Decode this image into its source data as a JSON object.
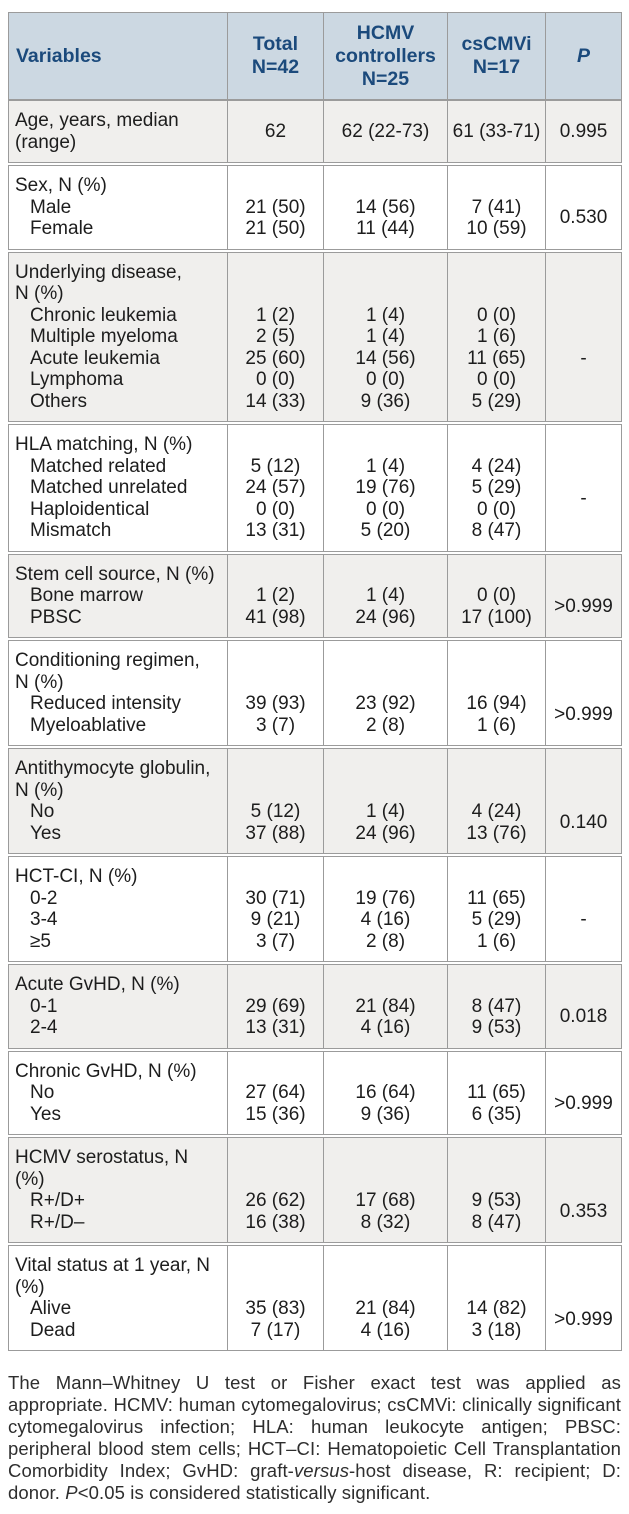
{
  "colors": {
    "header_bg": "#ccd8e2",
    "header_text": "#1b4a7c",
    "shaded_row_bg": "#f0efed",
    "border": "#9b9b9b",
    "body_text": "#1d1d1d",
    "footnote_text": "#2e2e2e",
    "page_bg": "#ffffff"
  },
  "table": {
    "header": [
      {
        "id": "variables",
        "lines": [
          "Variables"
        ],
        "italic": false
      },
      {
        "id": "total",
        "lines": [
          "Total",
          "N=42"
        ],
        "italic": false
      },
      {
        "id": "hcmv-controllers",
        "lines": [
          "HCMV",
          "controllers",
          "N=25"
        ],
        "italic": false
      },
      {
        "id": "cscmvi",
        "lines": [
          "csCMVi",
          "N=17"
        ],
        "italic": false
      },
      {
        "id": "p",
        "lines": [
          "P"
        ],
        "italic": true
      }
    ],
    "rows": [
      {
        "label_lines": [
          "Age, years, median",
          "(range)"
        ],
        "items": [],
        "total": [
          "62"
        ],
        "hcmv": [
          "62 (22-73)"
        ],
        "cscmvi": [
          "61 (33-71)"
        ],
        "p": "0.995",
        "shaded": true
      },
      {
        "label_lines": [
          "Sex, N (%)"
        ],
        "items": [
          "Male",
          "Female"
        ],
        "total": [
          "21 (50)",
          "21 (50)"
        ],
        "hcmv": [
          "14 (56)",
          "11 (44)"
        ],
        "cscmvi": [
          "7 (41)",
          "10 (59)"
        ],
        "p": "0.530",
        "shaded": false
      },
      {
        "label_lines": [
          "Underlying disease,",
          "N (%)"
        ],
        "items": [
          "Chronic leukemia",
          "Multiple myeloma",
          "Acute leukemia",
          "Lymphoma",
          "Others"
        ],
        "total": [
          "1 (2)",
          "2 (5)",
          "25 (60)",
          "0 (0)",
          "14 (33)"
        ],
        "hcmv": [
          "1 (4)",
          "1 (4)",
          "14 (56)",
          "0 (0)",
          "9 (36)"
        ],
        "cscmvi": [
          "0 (0)",
          "1 (6)",
          "11 (65)",
          "0 (0)",
          "5 (29)"
        ],
        "p": "-",
        "shaded": true
      },
      {
        "label_lines": [
          "HLA matching, N (%)"
        ],
        "items": [
          "Matched related",
          "Matched unrelated",
          "Haploidentical",
          "Mismatch"
        ],
        "total": [
          "5 (12)",
          "24 (57)",
          "0 (0)",
          "13 (31)"
        ],
        "hcmv": [
          "1 (4)",
          "19 (76)",
          "0 (0)",
          "5 (20)"
        ],
        "cscmvi": [
          "4 (24)",
          "5 (29)",
          "0 (0)",
          "8 (47)"
        ],
        "p": "-",
        "shaded": false
      },
      {
        "label_lines": [
          "Stem cell source, N (%)"
        ],
        "items": [
          "Bone marrow",
          "PBSC"
        ],
        "total": [
          "1 (2)",
          "41 (98)"
        ],
        "hcmv": [
          "1 (4)",
          "24 (96)"
        ],
        "cscmvi": [
          "0 (0)",
          "17 (100)"
        ],
        "p": ">0.999",
        "shaded": true
      },
      {
        "label_lines": [
          "Conditioning regimen,",
          "N (%)"
        ],
        "items": [
          "Reduced intensity",
          "Myeloablative"
        ],
        "total": [
          "39 (93)",
          "3 (7)"
        ],
        "hcmv": [
          "23 (92)",
          "2 (8)"
        ],
        "cscmvi": [
          "16 (94)",
          "1 (6)"
        ],
        "p": ">0.999",
        "shaded": false
      },
      {
        "label_lines": [
          "Antithymocyte globulin,",
          "N (%)"
        ],
        "items": [
          "No",
          "Yes"
        ],
        "total": [
          "5 (12)",
          "37 (88)"
        ],
        "hcmv": [
          "1 (4)",
          "24 (96)"
        ],
        "cscmvi": [
          "4 (24)",
          "13 (76)"
        ],
        "p": "0.140",
        "shaded": true
      },
      {
        "label_lines": [
          "HCT-CI, N (%)"
        ],
        "items": [
          "0-2",
          "3-4",
          "≥5"
        ],
        "total": [
          "30 (71)",
          "9 (21)",
          "3 (7)"
        ],
        "hcmv": [
          "19 (76)",
          "4 (16)",
          "2 (8)"
        ],
        "cscmvi": [
          "11 (65)",
          "5 (29)",
          "1 (6)"
        ],
        "p": "-",
        "shaded": false
      },
      {
        "label_lines": [
          "Acute GvHD, N (%)"
        ],
        "items": [
          "0-1",
          "2-4"
        ],
        "total": [
          "29 (69)",
          "13 (31)"
        ],
        "hcmv": [
          "21 (84)",
          "4 (16)"
        ],
        "cscmvi": [
          "8 (47)",
          "9 (53)"
        ],
        "p": "0.018",
        "shaded": true
      },
      {
        "label_lines": [
          "Chronic GvHD, N (%)"
        ],
        "items": [
          "No",
          "Yes"
        ],
        "total": [
          "27 (64)",
          "15 (36)"
        ],
        "hcmv": [
          "16 (64)",
          "9 (36)"
        ],
        "cscmvi": [
          "11 (65)",
          "6 (35)"
        ],
        "p": ">0.999",
        "shaded": false
      },
      {
        "label_lines": [
          "HCMV serostatus, N",
          "(%)"
        ],
        "items": [
          "R+/D+",
          "R+/D–"
        ],
        "total": [
          "26 (62)",
          "16 (38)"
        ],
        "hcmv": [
          "17 (68)",
          "8 (32)"
        ],
        "cscmvi": [
          "9 (53)",
          "8 (47)"
        ],
        "p": "0.353",
        "shaded": true
      },
      {
        "label_lines": [
          "Vital status at 1 year, N",
          "(%)"
        ],
        "items": [
          "Alive",
          "Dead"
        ],
        "total": [
          "35 (83)",
          "7 (17)"
        ],
        "hcmv": [
          "21 (84)",
          "4 (16)"
        ],
        "cscmvi": [
          "14 (82)",
          "3 (18)"
        ],
        "p": ">0.999",
        "shaded": false
      }
    ]
  },
  "footnote": {
    "segments": [
      {
        "text": "The Mann–Whitney U test or Fisher exact test was applied as appropriate. HCMV: human cytomegalovirus; csCMVi: clinically significant cytomegalovirus infection; HLA: human leukocyte antigen; PBSC: peripheral blood stem cells; HCT–CI: Hematopoietic Cell Transplantation Comorbidity Index; GvHD: graft-",
        "italic": false
      },
      {
        "text": "versus",
        "italic": true
      },
      {
        "text": "-host disease, R: recipient; D: donor. ",
        "italic": false
      },
      {
        "text": "P",
        "italic": true
      },
      {
        "text": "<0.05 is considered statistically significant.",
        "italic": false
      }
    ]
  }
}
